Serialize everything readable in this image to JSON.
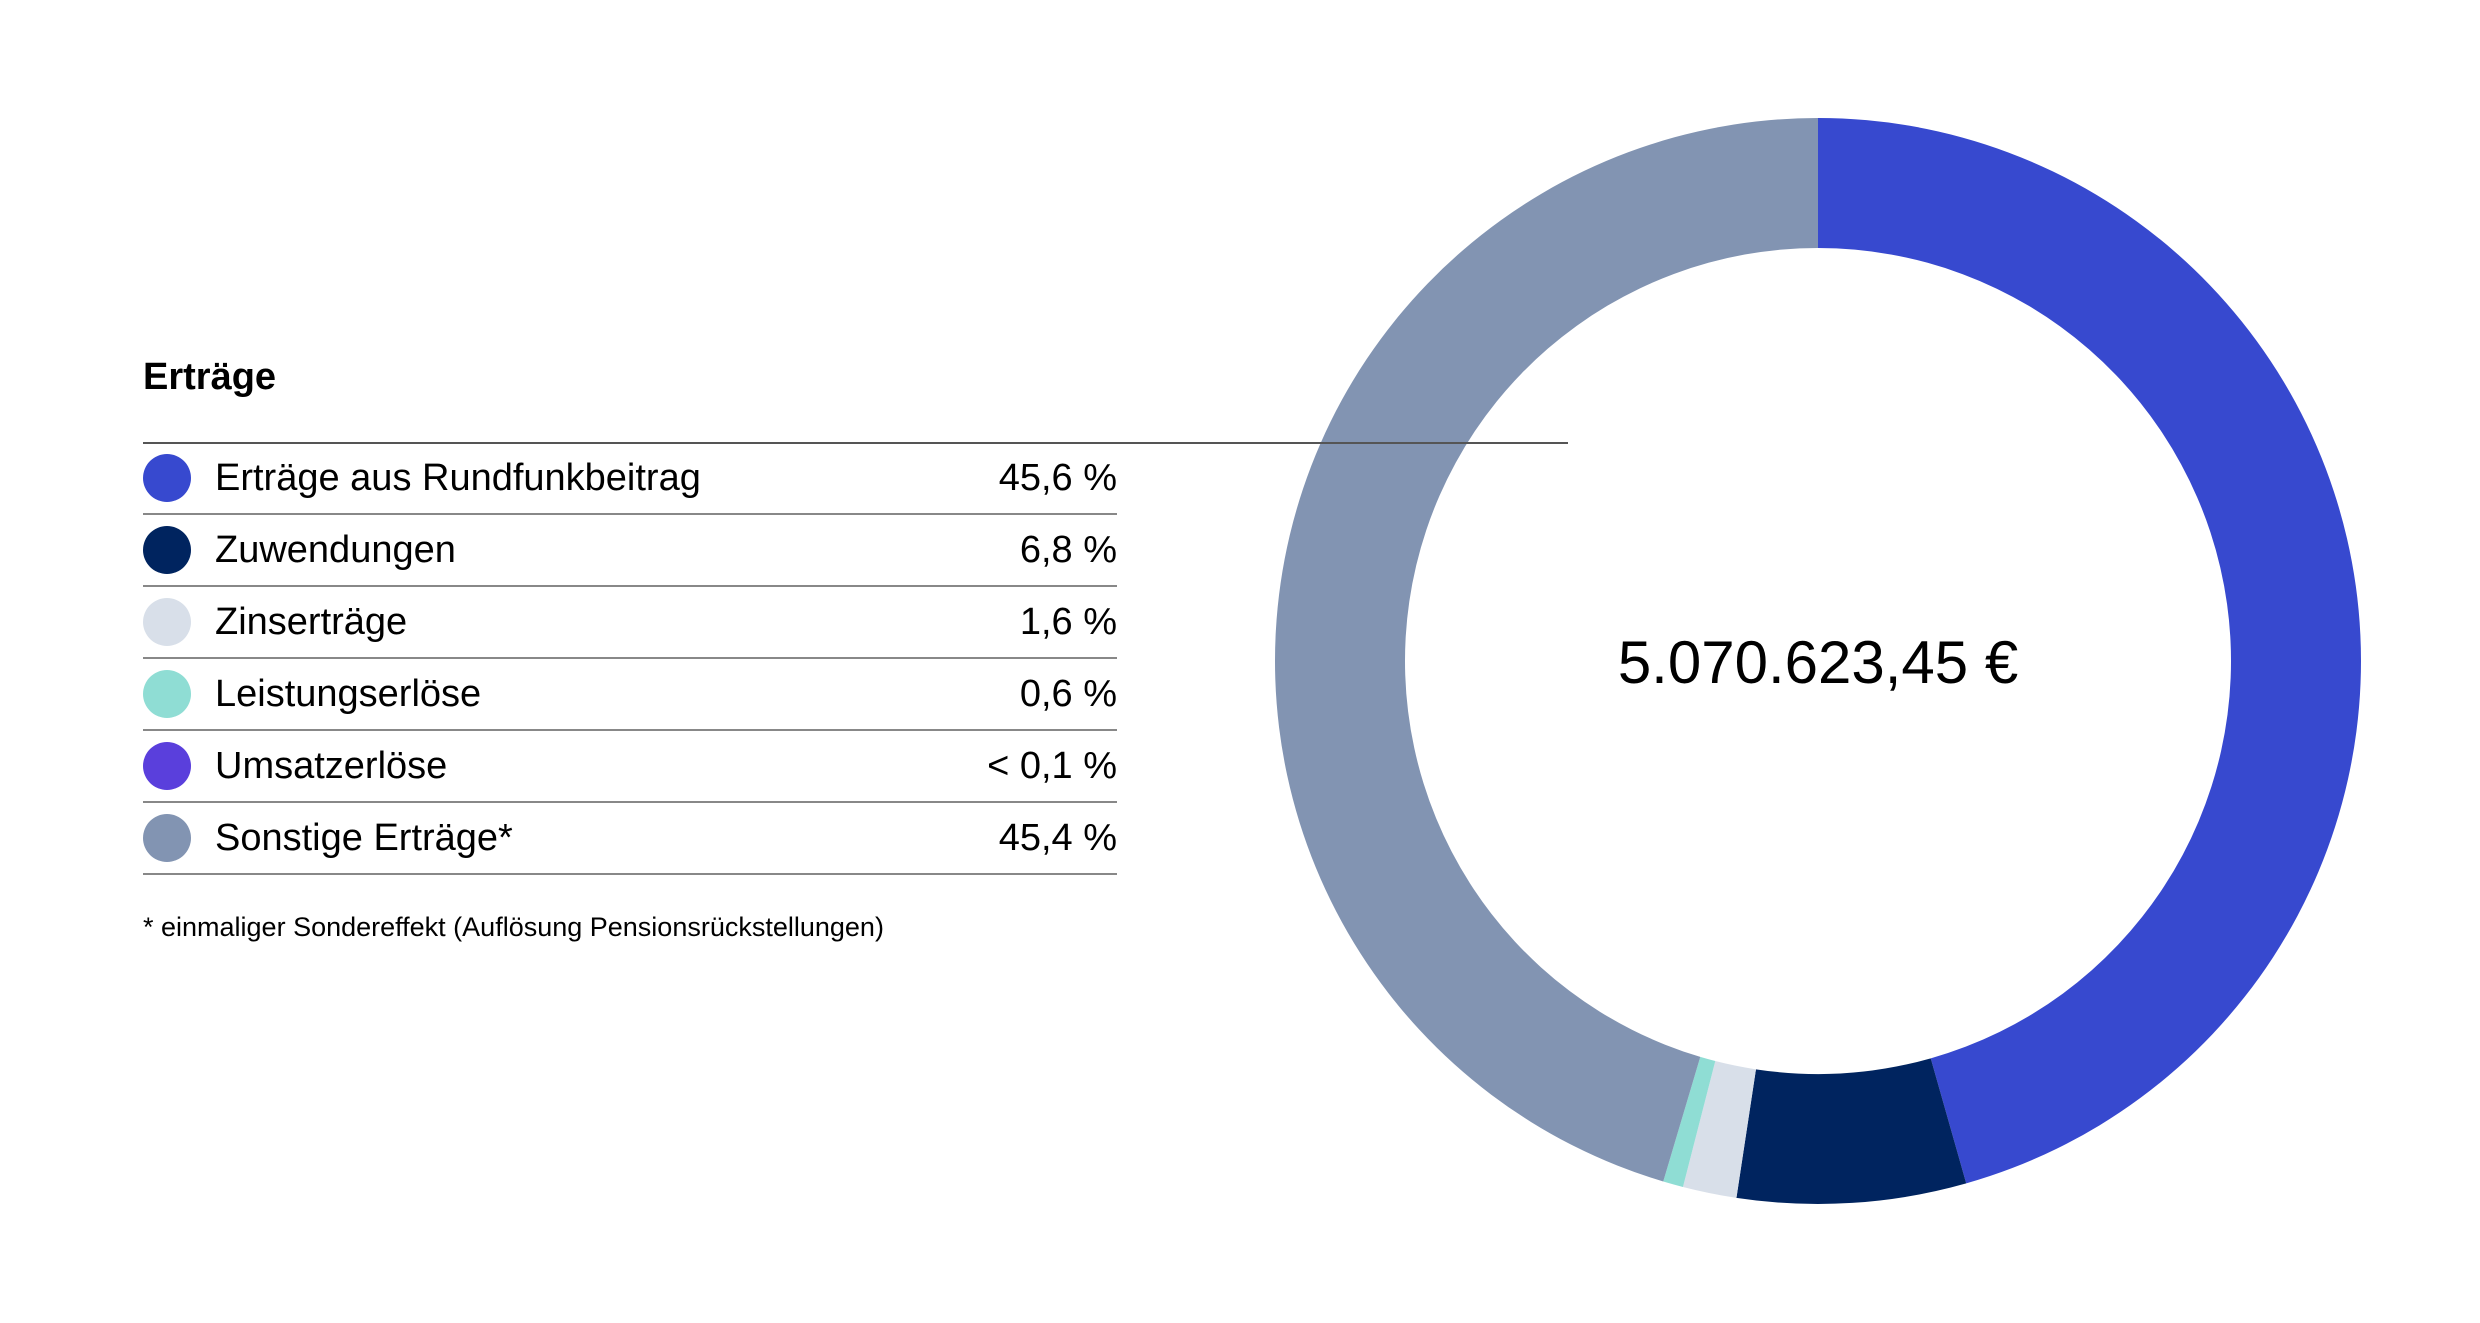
{
  "chart_data": {
    "type": "pie",
    "donut": true,
    "title": "Erträge",
    "center_label": "5.070.623,45 €",
    "footnote": "* einmaliger Sondereffekt (Auflösung Pensionsrückstellungen)",
    "legend_placement": "left",
    "unit": "%",
    "slices": [
      {
        "name": "Erträge aus Rundfunkbeitrag",
        "value": 45.6,
        "label": "45,6 %",
        "color": "#3749cf"
      },
      {
        "name": "Zuwendungen",
        "value": 6.8,
        "label": "6,8 %",
        "color": "#00245f"
      },
      {
        "name": "Zinserträge",
        "value": 1.6,
        "label": "1,6 %",
        "color": "#d8dfe9"
      },
      {
        "name": "Leistungserlöse",
        "value": 0.6,
        "label": "0,6 %",
        "color": "#8fddd4"
      },
      {
        "name": "Umsatzerlöse",
        "value": 0.0,
        "label": "< 0,1 %",
        "color": "#5a3fdc"
      },
      {
        "name": "Sonstige Erträge*",
        "value": 45.4,
        "label": "45,4 %",
        "color": "#8294b2"
      }
    ]
  }
}
